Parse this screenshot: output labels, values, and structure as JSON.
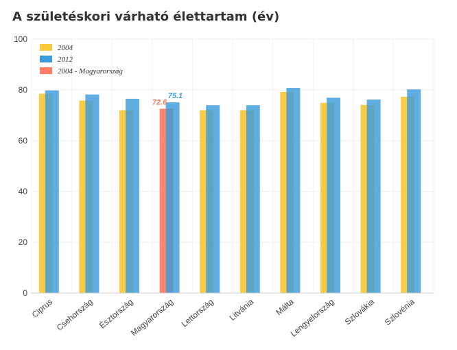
{
  "chart_data": {
    "type": "bar",
    "title": "A születéskori várható élettartam (év)",
    "categories": [
      "Ciprus",
      "Csehország",
      "Észtország",
      "Magyarország",
      "Lettország",
      "Litvánia",
      "Málta",
      "Lengyelország",
      "Szlovákia",
      "Szlovénia"
    ],
    "series": [
      {
        "name": "2004",
        "values": [
          78.5,
          75.8,
          72.0,
          null,
          72.0,
          72.0,
          79.2,
          74.9,
          74.1,
          77.3
        ],
        "color": "#f9c93e"
      },
      {
        "name": "2012",
        "values": [
          79.8,
          78.2,
          76.5,
          75.1,
          74.0,
          74.0,
          80.8,
          76.9,
          76.2,
          80.2
        ],
        "color": "#3d9bdb"
      },
      {
        "name": "2004 - Magyarország",
        "values": [
          null,
          null,
          null,
          72.6,
          null,
          null,
          null,
          null,
          null,
          null
        ],
        "color": "#ff7f66"
      }
    ],
    "data_labels": [
      {
        "category": "Magyarország",
        "series": "2004 - Magyarország",
        "text": "72.6",
        "color": "#f7775e"
      },
      {
        "category": "Magyarország",
        "series": "2012",
        "text": "75.1",
        "color": "#3d9bdb"
      }
    ],
    "yticks": [
      0,
      20,
      40,
      60,
      80,
      100
    ],
    "ylim": [
      0,
      100
    ],
    "xlabel": "",
    "ylabel": "",
    "grid": true,
    "legend_position": "top-left"
  }
}
